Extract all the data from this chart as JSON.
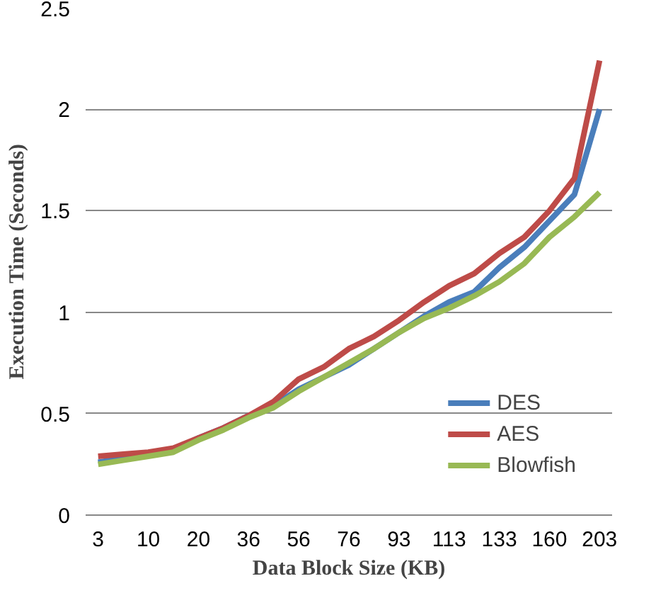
{
  "chart_data": {
    "type": "line",
    "xlabel": "Data Block Size (KB)",
    "ylabel": "Execution Time (Seconds)",
    "categories": [
      "3",
      null,
      "10",
      null,
      "20",
      null,
      "36",
      null,
      "56",
      null,
      "76",
      null,
      "93",
      null,
      "113",
      null,
      "133",
      null,
      "160",
      null,
      "203"
    ],
    "series": [
      {
        "name": "DES",
        "color": "#4a7ebb",
        "values": [
          0.26,
          0.28,
          0.3,
          0.32,
          0.38,
          0.43,
          0.49,
          0.54,
          0.62,
          0.68,
          0.74,
          0.82,
          0.9,
          0.98,
          1.05,
          1.1,
          1.22,
          1.32,
          1.45,
          1.58,
          2.0
        ]
      },
      {
        "name": "AES",
        "color": "#be4b48",
        "values": [
          0.29,
          0.3,
          0.31,
          0.33,
          0.38,
          0.43,
          0.49,
          0.56,
          0.67,
          0.73,
          0.82,
          0.88,
          0.96,
          1.05,
          1.13,
          1.19,
          1.29,
          1.37,
          1.5,
          1.66,
          2.24
        ]
      },
      {
        "name": "Blowfish",
        "color": "#98b954",
        "values": [
          0.25,
          0.27,
          0.29,
          0.31,
          0.37,
          0.42,
          0.48,
          0.53,
          0.61,
          0.68,
          0.75,
          0.82,
          0.9,
          0.97,
          1.02,
          1.08,
          1.15,
          1.24,
          1.37,
          1.47,
          1.59
        ]
      }
    ],
    "ylim": [
      0,
      2.5
    ],
    "yticks": [
      0,
      0.5,
      1,
      1.5,
      2,
      2.5
    ],
    "grid": "y",
    "legend": "bottom right"
  }
}
